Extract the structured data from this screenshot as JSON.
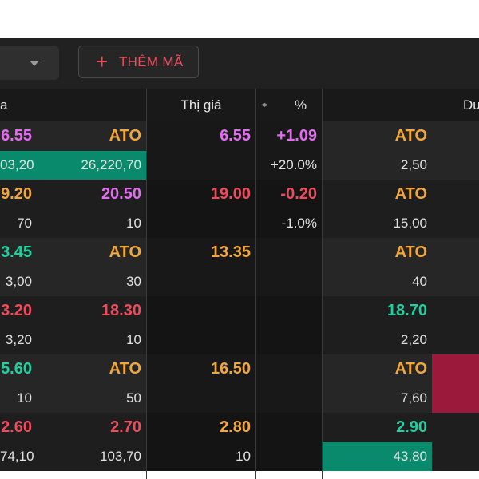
{
  "toolbar": {
    "add_label": "THÊM MÃ",
    "plus_glyph": "+"
  },
  "header": {
    "col0": "a",
    "col1": "Thị giá",
    "col2": "%",
    "col3": "Du",
    "arrows_glyph": "◂▸"
  },
  "colors": {
    "background": "#212121",
    "up": "#e36cf0",
    "reference": "#f3a73b",
    "green": "#1dd1a1",
    "red": "#f04b5c",
    "highlight_green": "#0a8a6c",
    "highlight_red": "#9b1a3c"
  },
  "rows": [
    {
      "price1": "6.55",
      "price1_color": "up",
      "price2": "ATO",
      "price2_color": "ref",
      "vol1": "03,20",
      "vol2": "26,220,70",
      "match_price": "6.55",
      "match_color": "up",
      "change": "+1.09",
      "change_color": "up",
      "match_vol": "",
      "pct": "+20.0%",
      "ask_price": "ATO",
      "ask_color": "ref",
      "ask_vol": "2,50"
    },
    {
      "price1": "9.20",
      "price1_color": "ref",
      "price2": "20.50",
      "price2_color": "up",
      "vol1": "70",
      "vol2": "10",
      "match_price": "19.00",
      "match_color": "red",
      "change": "-0.20",
      "change_color": "red",
      "match_vol": "",
      "pct": "-1.0%",
      "ask_price": "ATO",
      "ask_color": "ref",
      "ask_vol": "15,00"
    },
    {
      "price1": "3.45",
      "price1_color": "green",
      "price2": "ATO",
      "price2_color": "ref",
      "vol1": "3,00",
      "vol2": "30",
      "match_price": "13.35",
      "match_color": "ref",
      "change": "",
      "change_color": "ref",
      "match_vol": "",
      "pct": "",
      "ask_price": "ATO",
      "ask_color": "ref",
      "ask_vol": "40"
    },
    {
      "price1": "3.20",
      "price1_color": "red",
      "price2": "18.30",
      "price2_color": "red",
      "vol1": "3,20",
      "vol2": "10",
      "match_price": "",
      "match_color": "ref",
      "change": "",
      "change_color": "ref",
      "match_vol": "",
      "pct": "",
      "ask_price": "18.70",
      "ask_color": "green",
      "ask_vol": "2,20"
    },
    {
      "price1": "5.60",
      "price1_color": "green",
      "price2": "ATO",
      "price2_color": "ref",
      "vol1": "10",
      "vol2": "50",
      "match_price": "16.50",
      "match_color": "ref",
      "change": "",
      "change_color": "ref",
      "match_vol": "",
      "pct": "",
      "ask_price": "ATO",
      "ask_color": "ref",
      "ask_vol": "7,60"
    },
    {
      "price1": "2.60",
      "price1_color": "red",
      "price2": "2.70",
      "price2_color": "red",
      "vol1": "74,10",
      "vol2": "103,70",
      "match_price": "2.80",
      "match_color": "ref",
      "change": "",
      "change_color": "ref",
      "match_vol": "10",
      "pct": "",
      "ask_price": "2.90",
      "ask_color": "green",
      "ask_vol": "43,80"
    }
  ]
}
